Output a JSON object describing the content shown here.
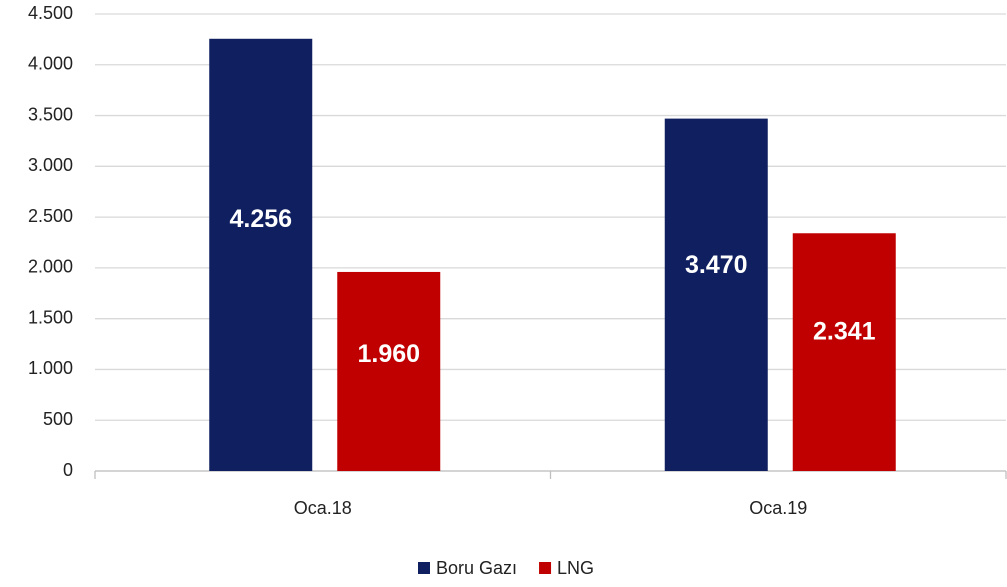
{
  "chart_data": {
    "type": "bar",
    "categories": [
      "Oca.18",
      "Oca.19"
    ],
    "series": [
      {
        "name": "Boru Gazı",
        "color": "#0f1f5f",
        "values": [
          4256,
          3470
        ],
        "value_labels": [
          "4.256",
          "3.470"
        ]
      },
      {
        "name": "LNG",
        "color": "#c00000",
        "values": [
          1960,
          2341
        ],
        "value_labels": [
          "1.960",
          "2.341"
        ]
      }
    ],
    "ylim": [
      0,
      4500
    ],
    "yticks": [
      0,
      500,
      {
        "value": 1000,
        "label": "1.000"
      },
      {
        "value": 1500,
        "label": "1.500"
      },
      {
        "value": 2000,
        "label": "2.000"
      },
      {
        "value": 2500,
        "label": "2.500"
      },
      {
        "value": 3000,
        "label": "3.000"
      },
      {
        "value": 3500,
        "label": "3.500"
      },
      {
        "value": 4000,
        "label": "4.000"
      },
      {
        "value": 4500,
        "label": "4.500"
      }
    ],
    "grid": true,
    "legend": "bottom"
  }
}
